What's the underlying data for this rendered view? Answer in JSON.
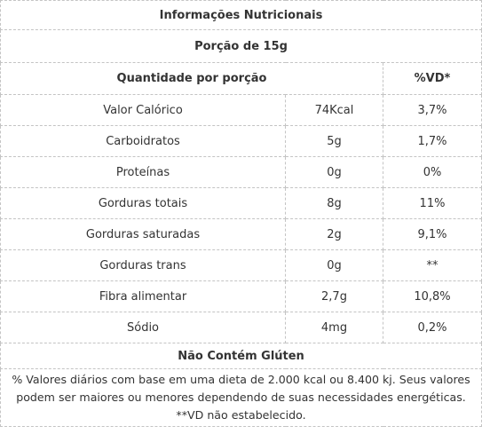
{
  "title": "Informações Nutricionais",
  "portion": "Porção de 15g",
  "header": {
    "quantity": "Quantidade por porção",
    "vd": "%VD*"
  },
  "nutrients": [
    {
      "name": "Valor Calórico",
      "amount": "74Kcal",
      "vd": "3,7%"
    },
    {
      "name": "Carboidratos",
      "amount": "5g",
      "vd": "1,7%"
    },
    {
      "name": "Proteínas",
      "amount": "0g",
      "vd": "0%"
    },
    {
      "name": "Gorduras totais",
      "amount": "8g",
      "vd": "11%"
    },
    {
      "name": "Gorduras saturadas",
      "amount": "2g",
      "vd": "9,1%"
    },
    {
      "name": "Gorduras trans",
      "amount": "0g",
      "vd": "**"
    },
    {
      "name": "Fibra alimentar",
      "amount": "2,7g",
      "vd": "10,8%"
    },
    {
      "name": "Sódio",
      "amount": "4mg",
      "vd": "0,2%"
    }
  ],
  "gluten": "Não Contém Glúten",
  "footnote": {
    "line1": "% Valores diários com base em uma dieta de 2.000 kcal ou 8.400 kj. Seus valores",
    "line2": "podem ser maiores ou menores dependendo de suas necessidades energéticas.",
    "line3": "**VD não estabelecido."
  }
}
